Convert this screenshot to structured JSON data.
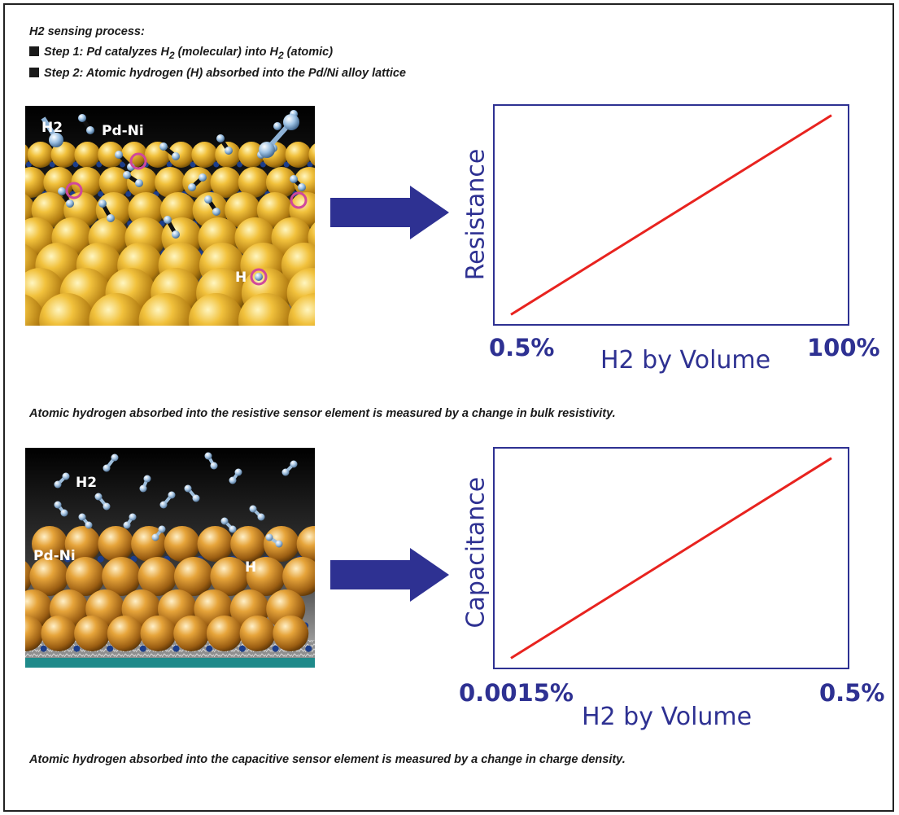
{
  "header": {
    "title": "H2 sensing process:",
    "step1": {
      "prefix": "Step 1: Pd catalyzes H",
      "sub1": "2",
      "mid": " (molecular) into H",
      "sub2": "2",
      "suffix": " (atomic)"
    },
    "step2": "Step 2: Atomic hydrogen (H) absorbed into the Pd/Ni alloy lattice"
  },
  "illustrations": {
    "top": {
      "labels": {
        "h2": "H2",
        "alloy": "Pd-Ni",
        "h": "H"
      }
    },
    "bottom": {
      "labels": {
        "h2": "H2",
        "alloy": "Pd-Ni",
        "h": "H"
      }
    }
  },
  "captions": {
    "resistive": "Atomic hydrogen absorbed into the resistive sensor element is measured by a change in bulk resistivity.",
    "capacitive": "Atomic hydrogen absorbed into the capacitive sensor element is measured by a change in charge density."
  },
  "colors": {
    "axis": "#2e3192",
    "line": "#e8231f",
    "arrow": "#2e3192",
    "gold": "#e0a92a",
    "copper": "#d28a2b"
  },
  "chart_data": [
    {
      "type": "line",
      "ylabel": "Resistance",
      "xlabel": "H2 by Volume",
      "x_tick_labels": [
        "0.5%",
        "100%"
      ],
      "series": [
        {
          "x": [
            "0.5%",
            "100%"
          ],
          "y": [
            0.05,
            0.95
          ]
        }
      ],
      "grid": false
    },
    {
      "type": "line",
      "ylabel": "Capacitance",
      "xlabel": "H2 by Volume",
      "x_tick_labels": [
        "0.0015%",
        "0.5%"
      ],
      "series": [
        {
          "x": [
            "0.0015%",
            "0.5%"
          ],
          "y": [
            0.05,
            0.95
          ]
        }
      ],
      "grid": false
    }
  ]
}
